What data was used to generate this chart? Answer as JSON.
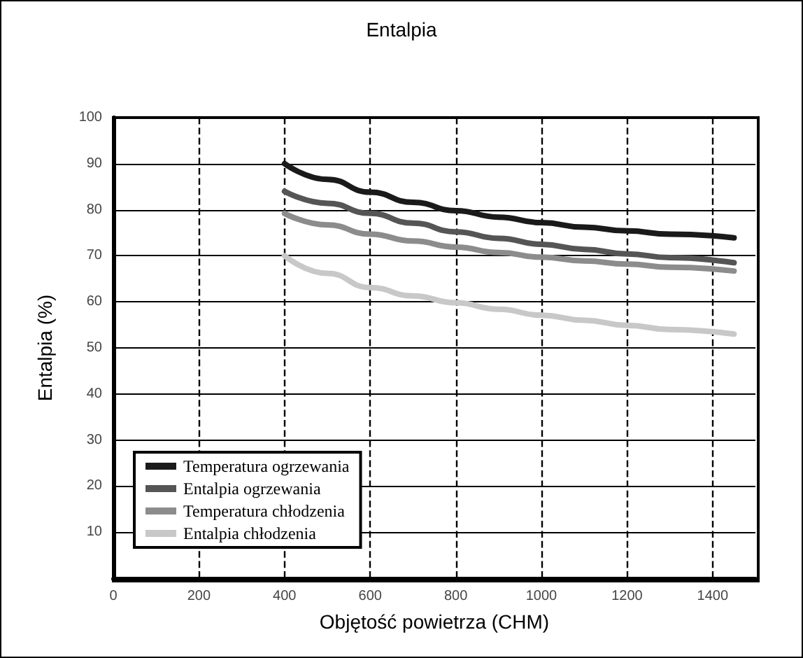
{
  "chart_data": {
    "type": "line",
    "title": "Entalpia",
    "xlabel": "Objętość powietrza (CHM)",
    "ylabel": "Entalpia (%)",
    "x": [
      400,
      500,
      600,
      700,
      800,
      900,
      1000,
      1100,
      1200,
      1300,
      1450
    ],
    "series": [
      {
        "name": "Temperatura ogrzewania",
        "color": "#1a1a1a",
        "values": [
          90,
          86.6,
          83.8,
          81.6,
          79.8,
          78.4,
          77.2,
          76.2,
          75.4,
          74.7,
          73.9
        ]
      },
      {
        "name": "Entalpia ogrzewania",
        "color": "#555555",
        "values": [
          84,
          81.4,
          79.2,
          77.1,
          75.2,
          73.8,
          72.5,
          71.4,
          70.4,
          69.6,
          68.5
        ]
      },
      {
        "name": "Temperatura chłodzenia",
        "color": "#8c8c8c",
        "values": [
          79.2,
          76.7,
          74.7,
          73.2,
          71.9,
          70.7,
          69.7,
          68.9,
          68.2,
          67.5,
          66.7
        ]
      },
      {
        "name": "Entalpia chłodzenia",
        "color": "#c8c8c8",
        "values": [
          70,
          66.2,
          63.1,
          61.3,
          59.8,
          58.4,
          57.1,
          56,
          54.9,
          54,
          53
        ]
      }
    ],
    "xlim": [
      0,
      1500
    ],
    "xticks": [
      0,
      200,
      400,
      600,
      800,
      1000,
      1200,
      1400
    ],
    "ylim": [
      0,
      100
    ],
    "yticks": [
      {
        "value": 0,
        "label": null
      },
      10,
      20,
      30,
      40,
      50,
      60,
      70,
      80,
      90,
      100
    ],
    "grid": true,
    "legend": "bottom left",
    "marker": "none",
    "line_style": "solid"
  }
}
